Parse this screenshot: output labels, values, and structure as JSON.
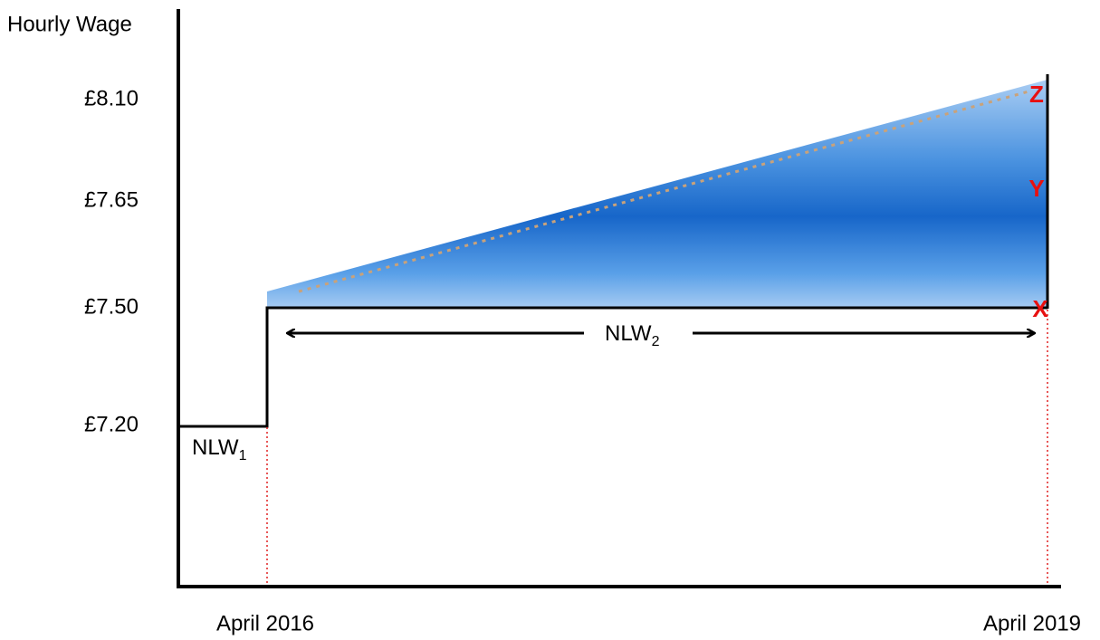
{
  "y_axis": {
    "label": "Hourly Wage",
    "ticks": [
      "£8.10",
      "£7.65",
      "£7.50",
      "£7.20"
    ]
  },
  "x_axis": {
    "ticks": [
      "April 2016",
      "April 2019"
    ]
  },
  "annotations": {
    "nlw1": {
      "text": "NLW",
      "subscript": "1"
    },
    "nlw2": {
      "text": "NLW",
      "subscript": "2"
    }
  },
  "points": [
    "Z",
    "Y",
    "X"
  ]
}
